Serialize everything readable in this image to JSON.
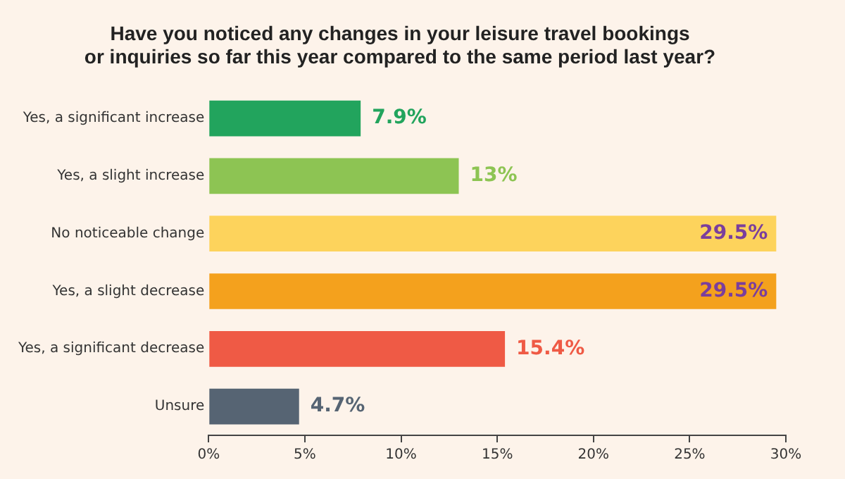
{
  "chart_data": {
    "type": "bar",
    "orientation": "horizontal",
    "title": "Have you noticed any changes in your leisure travel bookings\nor inquiries so far this year compared to the same period last year?",
    "categories": [
      "Yes, a significant increase",
      "Yes, a slight increase",
      "No noticeable change",
      "Yes, a slight decrease",
      "Yes, a significant decrease",
      "Unsure"
    ],
    "values": [
      7.9,
      13,
      29.5,
      29.5,
      15.4,
      4.7
    ],
    "colors": [
      "#22a45d",
      "#8dc453",
      "#fdd35c",
      "#f4a11d",
      "#ef5a45",
      "#566473"
    ],
    "value_labels": [
      "7.9%",
      "13%",
      "29.5%",
      "29.5%",
      "15.4%",
      "4.7%"
    ],
    "xlim": [
      0,
      30
    ],
    "xticks": [
      {
        "value": 0,
        "label": "0%"
      },
      {
        "value": 5,
        "label": "5%"
      },
      {
        "value": 10,
        "label": "10%"
      },
      {
        "value": 15,
        "label": "15%"
      },
      {
        "value": 20,
        "label": "20%"
      },
      {
        "value": 25,
        "label": "25%"
      },
      {
        "value": 30,
        "label": "30%"
      }
    ],
    "grid": false,
    "legend": false
  }
}
